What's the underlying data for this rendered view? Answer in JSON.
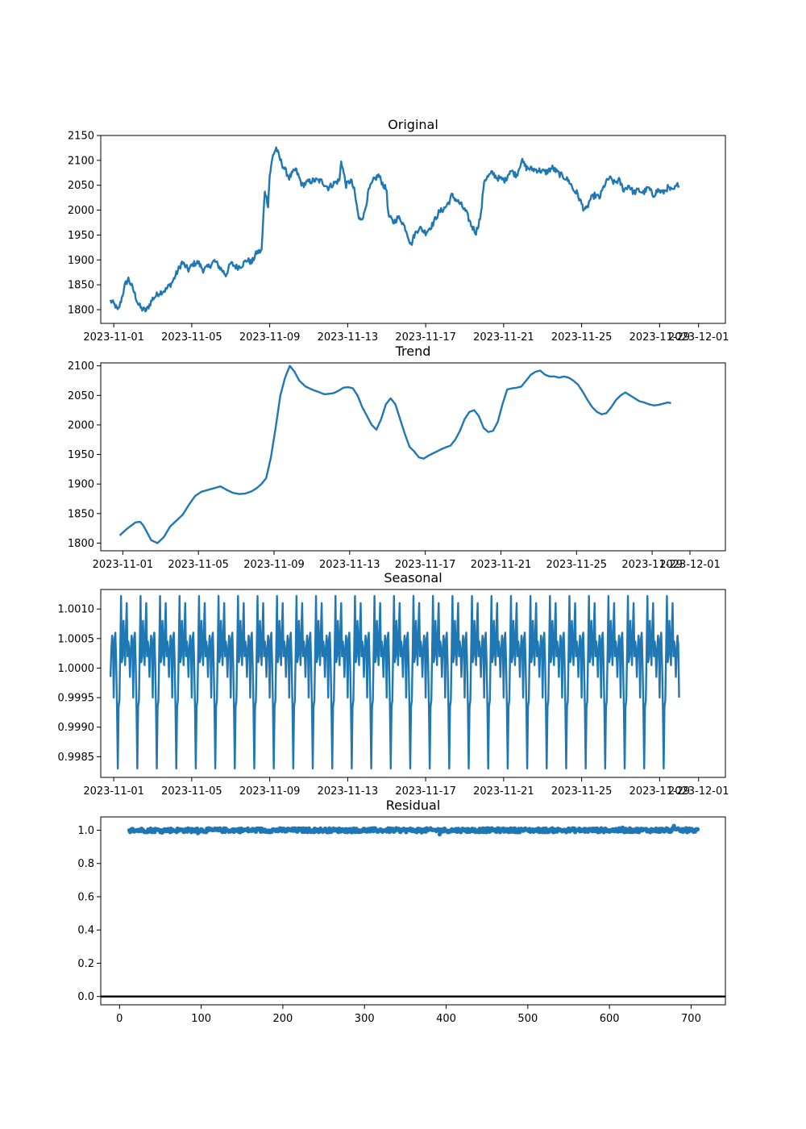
{
  "chart_data": [
    {
      "type": "line",
      "title": "Original",
      "xlabel": "",
      "ylabel": "",
      "x_kind": "date",
      "x_start": "2023-10-31T20:00:00",
      "x_step_hours": 1,
      "xlim": [
        "2023-10-31T08:00:00",
        "2023-12-02T09:00:00"
      ],
      "ylim": [
        1772.5,
        2150
      ],
      "xticks": [
        "2023-11-01",
        "2023-11-05",
        "2023-11-09",
        "2023-11-13",
        "2023-11-17",
        "2023-11-21",
        "2023-11-25",
        "2023-11-29",
        "2023-12-01"
      ],
      "yticks": [
        1800,
        1850,
        1900,
        1950,
        2000,
        2050,
        2100,
        2150
      ],
      "grid": false,
      "color": "#1f77b4",
      "series": [
        {
          "knots_hours": [
            0,
            6,
            9,
            12,
            18,
            22,
            28,
            34,
            38,
            44,
            52,
            60,
            68,
            76,
            84,
            88,
            96,
            102,
            108,
            114,
            120,
            128,
            136,
            142,
            148,
            156,
            162,
            168,
            174,
            180,
            186,
            190,
            194,
            196,
            200,
            204,
            208,
            212,
            220,
            228,
            236,
            244,
            252,
            260,
            268,
            276,
            282,
            284,
            290,
            296,
            300,
            306,
            312,
            318,
            324,
            330,
            336,
            340,
            342,
            348,
            354,
            358,
            364,
            370,
            374,
            380,
            388,
            396,
            404,
            412,
            418,
            420,
            426,
            432,
            438,
            444,
            450,
            456,
            460,
            470,
            476,
            486,
            492,
            500,
            506,
            512,
            520,
            528,
            536,
            544,
            552,
            560,
            566,
            570,
            574,
            578,
            582,
            586,
            590,
            596,
            602,
            608,
            614,
            620,
            626,
            632,
            638,
            644,
            650,
            656,
            662,
            668,
            674,
            680,
            686,
            692,
            698,
            700
          ],
          "knots_values": [
            1818,
            1808,
            1797,
            1812,
            1850,
            1862,
            1840,
            1812,
            1802,
            1798,
            1822,
            1834,
            1840,
            1855,
            1882,
            1895,
            1880,
            1892,
            1895,
            1880,
            1885,
            1898,
            1882,
            1870,
            1893,
            1885,
            1890,
            1900,
            1895,
            1915,
            1918,
            2040,
            2010,
            2070,
            2110,
            2125,
            2105,
            2090,
            2065,
            2082,
            2050,
            2057,
            2060,
            2058,
            2045,
            2055,
            2060,
            2100,
            2050,
            2060,
            2040,
            1980,
            1990,
            2040,
            2060,
            2070,
            2050,
            2040,
            1990,
            1975,
            1985,
            1980,
            1960,
            1930,
            1950,
            1965,
            1955,
            1970,
            1995,
            2005,
            2020,
            2030,
            2020,
            2010,
            1995,
            1970,
            1955,
            1990,
            2060,
            2075,
            2065,
            2060,
            2080,
            2070,
            2100,
            2085,
            2082,
            2080,
            2076,
            2085,
            2073,
            2065,
            2055,
            2040,
            2035,
            2020,
            2005,
            2000,
            2020,
            2030,
            2025,
            2050,
            2065,
            2055,
            2060,
            2040,
            2050,
            2035,
            2040,
            2035,
            2045,
            2030,
            2040,
            2035,
            2045,
            2038,
            2050,
            2055
          ],
          "noise_amplitude": 6
        }
      ]
    },
    {
      "type": "line",
      "title": "Trend",
      "xlabel": "",
      "ylabel": "",
      "x_kind": "date",
      "x_start": "2023-10-31T20:00:00",
      "x_step_hours": 1,
      "xlim": [
        "2023-10-30T20:00:00",
        "2023-12-02T21:00:00"
      ],
      "ylim": [
        1787,
        2105
      ],
      "xticks": [
        "2023-11-01",
        "2023-11-05",
        "2023-11-09",
        "2023-11-13",
        "2023-11-17",
        "2023-11-21",
        "2023-11-25",
        "2023-11-29",
        "2023-12-01"
      ],
      "yticks": [
        1800,
        1850,
        1900,
        1950,
        2000,
        2050,
        2100
      ],
      "grid": false,
      "color": "#1f77b4",
      "series": [
        {
          "knots_hours": [
            0,
            10,
            20,
            26,
            30,
            36,
            40,
            48,
            56,
            64,
            72,
            80,
            88,
            96,
            104,
            112,
            120,
            128,
            136,
            144,
            152,
            160,
            168,
            174,
            180,
            186,
            192,
            198,
            204,
            210,
            216,
            222,
            228,
            236,
            244,
            252,
            260,
            268,
            272,
            278,
            284,
            290,
            296,
            302,
            308,
            314,
            320,
            326,
            332,
            338,
            344,
            350,
            356,
            362,
            368,
            374,
            380,
            386,
            392,
            398,
            404,
            410,
            416,
            420,
            426,
            432,
            438,
            444,
            450,
            456,
            462,
            468,
            474,
            480,
            486,
            492,
            498,
            504,
            510,
            516,
            522,
            528,
            534,
            540,
            546,
            552,
            558,
            564,
            570,
            576,
            582,
            588,
            594,
            600,
            606,
            612,
            618,
            624,
            630,
            636,
            642,
            648,
            654,
            660,
            666,
            672,
            678,
            684,
            690,
            696,
            700
          ],
          "knots_values": [
            1813,
            1825,
            1835,
            1836,
            1830,
            1815,
            1805,
            1800,
            1810,
            1828,
            1838,
            1848,
            1865,
            1880,
            1887,
            1890,
            1893,
            1896,
            1890,
            1885,
            1883,
            1884,
            1888,
            1893,
            1900,
            1910,
            1945,
            1995,
            2050,
            2080,
            2100,
            2090,
            2075,
            2065,
            2060,
            2056,
            2052,
            2053,
            2054,
            2058,
            2063,
            2064,
            2062,
            2050,
            2030,
            2015,
            2000,
            1992,
            2010,
            2035,
            2045,
            2035,
            2010,
            1985,
            1963,
            1955,
            1945,
            1943,
            1948,
            1952,
            1956,
            1960,
            1963,
            1965,
            1975,
            1990,
            2010,
            2022,
            2025,
            2015,
            1995,
            1988,
            1990,
            2005,
            2035,
            2060,
            2062,
            2063,
            2065,
            2075,
            2085,
            2090,
            2092,
            2085,
            2082,
            2082,
            2080,
            2082,
            2080,
            2075,
            2068,
            2056,
            2042,
            2030,
            2022,
            2018,
            2020,
            2030,
            2042,
            2050,
            2055,
            2050,
            2045,
            2040,
            2038,
            2035,
            2033,
            2034,
            2036,
            2038,
            2037
          ],
          "noise_amplitude": 0
        }
      ]
    },
    {
      "type": "line",
      "title": "Seasonal",
      "xlabel": "",
      "ylabel": "",
      "x_kind": "date",
      "x_start": "2023-10-31T20:00:00",
      "x_step_hours": 1,
      "xlim": [
        "2023-10-31T08:00:00",
        "2023-12-02T09:00:00"
      ],
      "ylim": [
        0.99815,
        1.00133
      ],
      "xticks": [
        "2023-11-01",
        "2023-11-05",
        "2023-11-09",
        "2023-11-13",
        "2023-11-17",
        "2023-11-21",
        "2023-11-25",
        "2023-11-29",
        "2023-12-01"
      ],
      "yticks": [
        0.9985,
        0.999,
        0.9995,
        1.0,
        1.0005,
        1.001
      ],
      "ytick_labels": [
        "0.9985",
        "0.9990",
        "0.9995",
        "1.0000",
        "1.0005",
        "1.0010"
      ],
      "grid": false,
      "color": "#1f77b4",
      "series": [
        {
          "period_hours": 24,
          "pattern": [
            0.99985,
            1.0003,
            1.00055,
            1.0004,
            0.9995,
            1.0005,
            1.0006,
            1.0001,
            0.99935,
            0.9983,
            0.99935,
            0.99945,
            1.0003,
            1.00122,
            1.0001,
            1.0002,
            1.0008,
            1.0004,
            1.00005,
            1.00065,
            1.0011,
            1.0002,
            1.00045,
            1.0003
          ],
          "length": 701
        }
      ]
    },
    {
      "type": "scatter",
      "title": "Residual",
      "xlabel": "",
      "ylabel": "",
      "x_kind": "number",
      "x_start": 12,
      "x_step": 1,
      "xlim": [
        -23,
        742
      ],
      "ylim": [
        -0.05,
        1.08
      ],
      "xticks": [
        0,
        100,
        200,
        300,
        400,
        500,
        600,
        700
      ],
      "yticks": [
        0.0,
        0.2,
        0.4,
        0.6,
        0.8,
        1.0
      ],
      "ytick_labels": [
        "0.0",
        "0.2",
        "0.4",
        "0.6",
        "0.8",
        "1.0"
      ],
      "grid": false,
      "color": "#1f77b4",
      "hline": 0,
      "series": [
        {
          "base": 1.0,
          "spread": 0.012,
          "length": 697
        }
      ]
    }
  ]
}
